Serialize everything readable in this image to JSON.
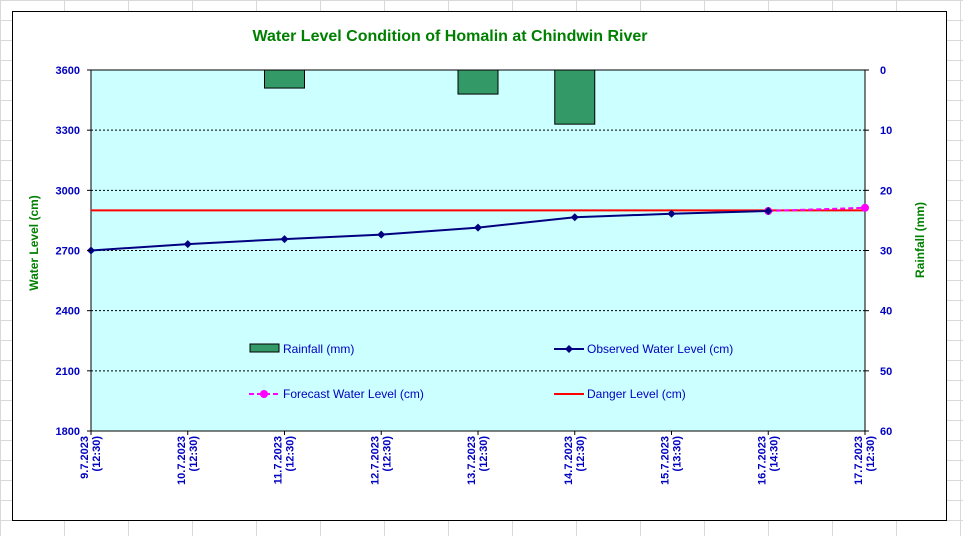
{
  "colors": {
    "plot_bg": "#ccffff",
    "title": "#008000",
    "axis_text": "#0000c0",
    "rainfall": "#339966",
    "observed": "#000080",
    "forecast": "#ff00ff",
    "danger": "#ff0000"
  },
  "chart_data": {
    "type": "line",
    "title": "Water Level Condition of Homalin at Chindwin River",
    "ylabel": "Water Level (cm)",
    "y2label": "Rainfall (mm)",
    "ylim": [
      1800,
      3600
    ],
    "y_ticks": [
      "1800",
      "2100",
      "2400",
      "2700",
      "3000",
      "3300",
      "3600"
    ],
    "y2lim": [
      0,
      60
    ],
    "y2_ticks": [
      "0",
      "10",
      "20",
      "30",
      "40",
      "50",
      "60"
    ],
    "y2_reversed": true,
    "grid": "horizontal dashed",
    "categories": [
      [
        "9.7.2023",
        "(12:30)"
      ],
      [
        "10.7.2023",
        "(12:30)"
      ],
      [
        "11.7.2023",
        "(12:30)"
      ],
      [
        "12.7.2023",
        "(12:30)"
      ],
      [
        "13.7.2023",
        "(12:30)"
      ],
      [
        "14.7.2023",
        "(12:30)"
      ],
      [
        "15.7.2023",
        "(13:30)"
      ],
      [
        "16.7.2023",
        "(14:30)"
      ],
      [
        "17.7.2023",
        "(12:30)"
      ]
    ],
    "series": [
      {
        "name": "Rainfall (mm)",
        "type": "bar",
        "axis": "right",
        "values": [
          0,
          0,
          3.0,
          0,
          4.0,
          9.0,
          0,
          0,
          0
        ]
      },
      {
        "name": "Observed Water Level (cm)",
        "type": "line",
        "axis": "left",
        "values": [
          2700,
          2732,
          2757,
          2779,
          2814,
          2866,
          2883,
          2897,
          null
        ]
      },
      {
        "name": "Forecast Water Level (cm)",
        "type": "line-dashed",
        "axis": "left",
        "values": [
          null,
          null,
          null,
          null,
          null,
          null,
          null,
          2897,
          2913
        ]
      },
      {
        "name": "Danger Level (cm)",
        "type": "constant",
        "axis": "left",
        "value": 2900
      }
    ],
    "legend": [
      "Rainfall (mm)",
      "Observed Water Level (cm)",
      "Forecast Water Level (cm)",
      "Danger Level (cm)"
    ]
  }
}
